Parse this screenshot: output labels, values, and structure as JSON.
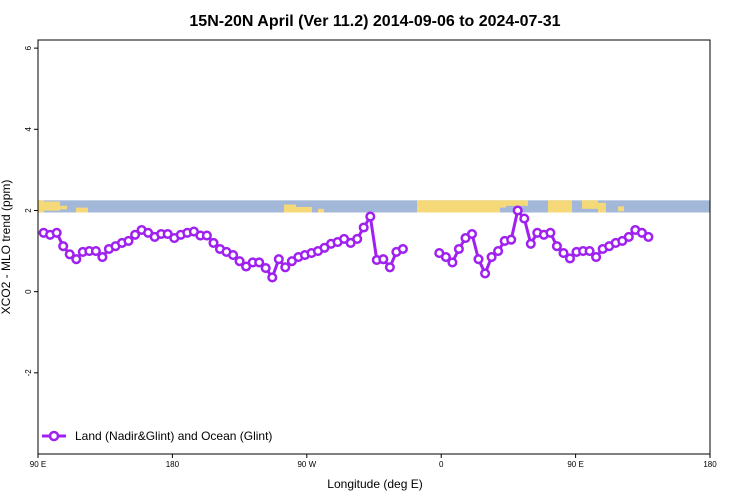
{
  "chart_data": {
    "type": "line",
    "title": "15N-20N April (Ver 11.2)   2014-09-06 to 2024-07-31",
    "xlabel": "Longitude (deg E)",
    "ylabel": "XCO2 - MLO trend (ppm)",
    "xlim": [
      90,
      450
    ],
    "ylim": [
      -4,
      6.2
    ],
    "x_ticks": [
      {
        "value": 90,
        "label": "90 E"
      },
      {
        "value": 162,
        "label": "180"
      },
      {
        "value": 234,
        "label": "90 W"
      },
      {
        "value": 306,
        "label": "0"
      },
      {
        "value": 378,
        "label": "90 E"
      },
      {
        "value": 450,
        "label": "180"
      }
    ],
    "y_ticks": [
      {
        "value": -2,
        "label": "-2"
      },
      {
        "value": 0,
        "label": "0"
      },
      {
        "value": 2,
        "label": "2"
      },
      {
        "value": 4,
        "label": "4"
      },
      {
        "value": 6,
        "label": "6"
      }
    ],
    "legend": {
      "position": "bottom-left"
    },
    "colors": {
      "series": "#a020f0",
      "ocean": "#a3b8d8",
      "land": "#f5d978"
    },
    "land_band": {
      "y_range": [
        1.95,
        2.25
      ]
    },
    "series": [
      {
        "name": "Land (Nadir&Glint) and Ocean (Glint)",
        "points": [
          [
            93,
            1.45
          ],
          [
            96.5,
            1.4
          ],
          [
            100,
            1.45
          ],
          [
            103.5,
            1.12
          ],
          [
            107,
            0.92
          ],
          [
            110.5,
            0.8
          ],
          [
            114,
            0.98
          ],
          [
            117.5,
            1.0
          ],
          [
            121,
            1.0
          ],
          [
            124.5,
            0.85
          ],
          [
            128,
            1.05
          ],
          [
            131.5,
            1.12
          ],
          [
            135,
            1.2
          ],
          [
            138.5,
            1.25
          ],
          [
            142,
            1.4
          ],
          [
            145.5,
            1.52
          ],
          [
            149,
            1.45
          ],
          [
            152.5,
            1.35
          ],
          [
            156,
            1.42
          ],
          [
            159.5,
            1.42
          ],
          [
            163,
            1.32
          ],
          [
            166.5,
            1.4
          ],
          [
            170,
            1.45
          ],
          [
            173.5,
            1.48
          ],
          [
            177,
            1.38
          ],
          [
            180.5,
            1.38
          ],
          [
            184,
            1.2
          ],
          [
            187.5,
            1.05
          ],
          [
            191,
            0.98
          ],
          [
            194.5,
            0.9
          ],
          [
            198,
            0.75
          ],
          [
            201.5,
            0.62
          ],
          [
            205,
            0.72
          ],
          [
            208.5,
            0.72
          ],
          [
            212,
            0.58
          ],
          [
            215.5,
            0.35
          ],
          [
            219,
            0.8
          ],
          [
            222.5,
            0.6
          ],
          [
            226,
            0.75
          ],
          [
            229.5,
            0.85
          ],
          [
            233,
            0.9
          ],
          [
            236.5,
            0.95
          ],
          [
            240,
            1.0
          ],
          [
            243.5,
            1.08
          ],
          [
            247,
            1.18
          ],
          [
            250.5,
            1.22
          ],
          [
            254,
            1.3
          ],
          [
            257.5,
            1.2
          ],
          [
            261,
            1.3
          ],
          [
            264.5,
            1.58
          ],
          [
            268,
            1.85
          ],
          [
            271.5,
            0.78
          ],
          [
            275,
            0.8
          ],
          [
            278.5,
            0.6
          ],
          [
            282,
            0.98
          ],
          [
            285.5,
            1.05
          ],
          null,
          [
            305,
            0.95
          ],
          [
            308.5,
            0.85
          ],
          [
            312,
            0.72
          ],
          [
            315.5,
            1.05
          ],
          [
            319,
            1.32
          ],
          [
            322.5,
            1.42
          ],
          [
            326,
            0.8
          ],
          [
            329.5,
            0.45
          ],
          [
            333,
            0.85
          ],
          [
            336.5,
            1.0
          ],
          [
            340,
            1.25
          ],
          [
            343.5,
            1.28
          ],
          [
            347,
            2.0
          ],
          [
            350.5,
            1.8
          ],
          [
            354,
            1.18
          ],
          [
            357.5,
            1.45
          ],
          [
            361,
            1.4
          ],
          [
            364.5,
            1.45
          ],
          [
            368,
            1.12
          ],
          [
            371.5,
            0.95
          ],
          [
            375,
            0.82
          ],
          [
            378.5,
            0.98
          ],
          [
            382,
            1.0
          ],
          [
            385.5,
            1.0
          ],
          [
            389,
            0.85
          ],
          [
            392.5,
            1.05
          ],
          [
            396,
            1.12
          ],
          [
            399.5,
            1.2
          ],
          [
            403,
            1.25
          ],
          [
            406.5,
            1.35
          ],
          [
            410,
            1.52
          ],
          [
            413.5,
            1.45
          ],
          [
            417,
            1.35
          ]
        ]
      }
    ]
  }
}
